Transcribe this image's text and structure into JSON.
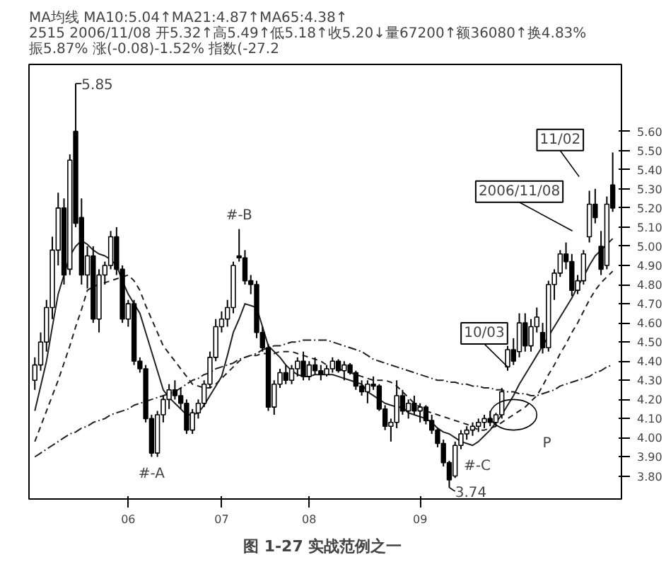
{
  "chart_data": {
    "type": "candlestick",
    "title": "图 1-27  实战范例之一",
    "subtitle": "MA均线 MA10:5.04↑MA21:4.87↑MA65:4.38↑\n2515 2006/11/08 开5.32↑高5.49↑低5.18↑收5.20↓量67200↑额36080↑换4.83% 振5.87% 涨(-0.08)-1.52% 指数(-27.2",
    "categories": [
      null,
      null,
      null,
      null,
      null,
      null,
      null,
      null,
      null,
      null,
      null,
      null,
      null,
      null,
      null,
      null,
      "06",
      null,
      null,
      null,
      null,
      null,
      null,
      null,
      null,
      null,
      null,
      null,
      null,
      null,
      null,
      null,
      "07",
      null,
      null,
      null,
      null,
      null,
      null,
      null,
      null,
      null,
      null,
      null,
      null,
      null,
      null,
      "08",
      null,
      null,
      null,
      null,
      null,
      null,
      null,
      null,
      null,
      null,
      null,
      null,
      null,
      null,
      null,
      null,
      null,
      null,
      "09",
      null,
      null,
      null,
      null,
      null,
      null,
      null,
      null,
      null,
      null,
      null,
      null,
      null,
      null,
      null,
      null,
      null,
      null,
      null,
      null,
      null,
      null,
      null,
      null,
      null,
      null,
      null,
      null,
      null,
      null,
      null,
      null,
      null
    ],
    "ylim": [
      3.68,
      5.95
    ],
    "yticks": [
      {
        "value": 3.8,
        "label": "3.80"
      },
      {
        "value": 3.9,
        "label": "3.90"
      },
      {
        "value": 4.0,
        "label": "4.00"
      },
      {
        "value": 4.1,
        "label": "4.10"
      },
      {
        "value": 4.2,
        "label": "4.20"
      },
      {
        "value": 4.3,
        "label": "4.30"
      },
      {
        "value": 4.4,
        "label": "4.40"
      },
      {
        "value": 4.5,
        "label": "4.50"
      },
      {
        "value": 4.6,
        "label": "4.60"
      },
      {
        "value": 4.7,
        "label": "4.70"
      },
      {
        "value": 4.8,
        "label": "4.80"
      },
      {
        "value": 4.9,
        "label": "4.90"
      },
      {
        "value": 5.0,
        "label": "5.00"
      },
      {
        "value": 5.1,
        "label": "5.10"
      },
      {
        "value": 5.2,
        "label": "5.20"
      },
      {
        "value": 5.3,
        "label": "5.30"
      },
      {
        "value": 5.4,
        "label": "5.40"
      },
      {
        "value": 5.5,
        "label": "5.50"
      },
      {
        "value": 5.6,
        "label": "5.60"
      }
    ],
    "ohlc": [
      [
        4.3,
        4.42,
        4.25,
        4.38
      ],
      [
        4.38,
        4.55,
        4.35,
        4.5
      ],
      [
        4.5,
        4.72,
        4.45,
        4.68
      ],
      [
        4.68,
        5.05,
        4.62,
        4.98
      ],
      [
        4.98,
        5.28,
        4.9,
        5.2
      ],
      [
        5.2,
        5.25,
        4.8,
        4.85
      ],
      [
        4.88,
        5.48,
        4.85,
        5.45
      ],
      [
        5.6,
        5.85,
        5.1,
        5.12
      ],
      [
        5.15,
        5.25,
        4.8,
        4.85
      ],
      [
        4.85,
        5.0,
        4.78,
        4.95
      ],
      [
        4.95,
        5.0,
        4.6,
        4.62
      ],
      [
        4.62,
        4.88,
        4.55,
        4.85
      ],
      [
        4.85,
        4.92,
        4.8,
        4.9
      ],
      [
        4.9,
        5.08,
        4.88,
        5.05
      ],
      [
        5.05,
        5.1,
        4.85,
        4.88
      ],
      [
        4.88,
        4.9,
        4.6,
        4.62
      ],
      [
        4.62,
        4.72,
        4.58,
        4.7
      ],
      [
        4.7,
        4.72,
        4.38,
        4.4
      ],
      [
        4.4,
        4.42,
        4.34,
        4.36
      ],
      [
        4.36,
        4.38,
        4.08,
        4.1
      ],
      [
        4.1,
        4.12,
        3.9,
        3.92
      ],
      [
        3.92,
        4.14,
        3.9,
        4.12
      ],
      [
        4.12,
        4.22,
        4.08,
        4.2
      ],
      [
        4.2,
        4.28,
        4.15,
        4.25
      ],
      [
        4.25,
        4.3,
        4.2,
        4.22
      ],
      [
        4.22,
        4.26,
        4.15,
        4.18
      ],
      [
        4.18,
        4.2,
        4.02,
        4.04
      ],
      [
        4.04,
        4.15,
        4.02,
        4.13
      ],
      [
        4.13,
        4.2,
        4.1,
        4.18
      ],
      [
        4.18,
        4.3,
        4.16,
        4.28
      ],
      [
        4.28,
        4.45,
        4.26,
        4.42
      ],
      [
        4.42,
        4.62,
        4.4,
        4.58
      ],
      [
        4.58,
        4.66,
        4.55,
        4.62
      ],
      [
        4.62,
        4.72,
        4.58,
        4.68
      ],
      [
        4.68,
        4.92,
        4.65,
        4.9
      ],
      [
        4.95,
        5.09,
        4.92,
        4.94
      ],
      [
        4.94,
        4.98,
        4.8,
        4.82
      ],
      [
        4.82,
        4.85,
        4.75,
        4.8
      ],
      [
        4.8,
        4.82,
        4.52,
        4.55
      ],
      [
        4.55,
        4.58,
        4.45,
        4.47
      ],
      [
        4.47,
        4.49,
        4.14,
        4.16
      ],
      [
        4.16,
        4.3,
        4.12,
        4.28
      ],
      [
        4.28,
        4.36,
        4.26,
        4.34
      ],
      [
        4.34,
        4.38,
        4.28,
        4.3
      ],
      [
        4.3,
        4.38,
        4.28,
        4.36
      ],
      [
        4.36,
        4.42,
        4.32,
        4.4
      ],
      [
        4.4,
        4.45,
        4.3,
        4.32
      ],
      [
        4.32,
        4.4,
        4.3,
        4.38
      ],
      [
        4.38,
        4.42,
        4.33,
        4.35
      ],
      [
        4.35,
        4.38,
        4.3,
        4.33
      ],
      [
        4.33,
        4.38,
        4.32,
        4.36
      ],
      [
        4.36,
        4.42,
        4.34,
        4.4
      ],
      [
        4.4,
        4.41,
        4.34,
        4.35
      ],
      [
        4.35,
        4.4,
        4.3,
        4.38
      ],
      [
        4.38,
        4.39,
        4.33,
        4.34
      ],
      [
        4.34,
        4.35,
        4.25,
        4.27
      ],
      [
        4.27,
        4.3,
        4.22,
        4.24
      ],
      [
        4.24,
        4.3,
        4.18,
        4.28
      ],
      [
        4.28,
        4.32,
        4.25,
        4.27
      ],
      [
        4.27,
        4.28,
        4.14,
        4.15
      ],
      [
        4.15,
        4.17,
        4.04,
        4.06
      ],
      [
        4.06,
        4.1,
        3.98,
        4.08
      ],
      [
        4.08,
        4.3,
        4.05,
        4.22
      ],
      [
        4.22,
        4.25,
        4.12,
        4.14
      ],
      [
        4.14,
        4.2,
        4.1,
        4.18
      ],
      [
        4.18,
        4.22,
        4.12,
        4.14
      ],
      [
        4.14,
        4.18,
        4.08,
        4.16
      ],
      [
        4.16,
        4.17,
        4.07,
        4.09
      ],
      [
        4.09,
        4.12,
        4.02,
        4.04
      ],
      [
        4.04,
        4.05,
        3.95,
        3.97
      ],
      [
        3.97,
        3.99,
        3.85,
        3.87
      ],
      [
        3.87,
        3.88,
        3.74,
        3.78
      ],
      [
        3.8,
        3.98,
        3.79,
        3.96
      ],
      [
        3.96,
        4.04,
        3.94,
        4.02
      ],
      [
        4.02,
        4.06,
        3.99,
        4.04
      ],
      [
        4.04,
        4.08,
        4.01,
        4.06
      ],
      [
        4.06,
        4.1,
        4.03,
        4.08
      ],
      [
        4.08,
        4.12,
        4.05,
        4.1
      ],
      [
        4.1,
        4.14,
        4.06,
        4.08
      ],
      [
        4.08,
        4.13,
        4.06,
        4.12
      ],
      [
        4.12,
        4.26,
        4.1,
        4.24
      ],
      [
        4.37,
        4.48,
        4.35,
        4.46
      ],
      [
        4.46,
        4.52,
        4.38,
        4.4
      ],
      [
        4.45,
        4.65,
        4.42,
        4.6
      ],
      [
        4.6,
        4.65,
        4.45,
        4.48
      ],
      [
        4.48,
        4.62,
        4.45,
        4.58
      ],
      [
        4.58,
        4.68,
        4.55,
        4.63
      ],
      [
        4.55,
        4.6,
        4.44,
        4.47
      ],
      [
        4.47,
        4.82,
        4.45,
        4.8
      ],
      [
        4.8,
        4.88,
        4.72,
        4.86
      ],
      [
        4.86,
        4.98,
        4.84,
        4.96
      ],
      [
        4.96,
        5.02,
        4.88,
        4.92
      ],
      [
        4.92,
        4.96,
        4.74,
        4.77
      ],
      [
        4.77,
        4.85,
        4.75,
        4.82
      ],
      [
        4.82,
        4.98,
        4.8,
        4.96
      ],
      [
        5.05,
        5.29,
        5.02,
        5.22
      ],
      [
        5.22,
        5.3,
        5.12,
        5.15
      ],
      [
        5.0,
        5.08,
        4.85,
        4.88
      ],
      [
        4.9,
        5.26,
        4.88,
        5.22
      ],
      [
        5.32,
        5.49,
        5.18,
        5.2
      ]
    ],
    "series": [
      {
        "type": "line",
        "color": "#222222",
        "line_style": "solid",
        "values": [
          4.14,
          4.27,
          4.4,
          4.58,
          4.75,
          4.85,
          4.95,
          5.0,
          5.03,
          5.01,
          4.98,
          4.96,
          4.95,
          4.93,
          4.9,
          4.82,
          4.75,
          4.7,
          4.65,
          4.55,
          4.45,
          4.35,
          4.25,
          4.21,
          4.18,
          4.15,
          4.12,
          4.12,
          4.13,
          4.17,
          4.22,
          4.27,
          4.32,
          4.43,
          4.55,
          4.62,
          4.7,
          4.69,
          4.68,
          4.58,
          4.48,
          4.45,
          4.42,
          4.38,
          4.35,
          4.33,
          4.32,
          4.32,
          4.33,
          4.33,
          4.33,
          4.33,
          4.32,
          4.31,
          4.3,
          4.29,
          4.28,
          4.24,
          4.22,
          4.2,
          4.18,
          4.17,
          4.16,
          4.16,
          4.13,
          4.12,
          4.11,
          4.1,
          4.08,
          4.05,
          4.03,
          4.02,
          4.0,
          3.98,
          3.97,
          3.96,
          3.98,
          4.01,
          4.04,
          4.08,
          4.12,
          4.17,
          4.22,
          4.28,
          4.33,
          4.38,
          4.43,
          4.48,
          4.53,
          4.58,
          4.63,
          4.68,
          4.73,
          4.79,
          4.84,
          4.9,
          4.95,
          4.98,
          5.01,
          5.04
        ]
      },
      {
        "type": "line",
        "color": "#222222",
        "line_style": "dashed",
        "values": [
          3.98,
          4.06,
          4.14,
          4.22,
          4.3,
          4.39,
          4.48,
          4.58,
          4.67,
          4.77,
          4.79,
          4.8,
          4.81,
          4.82,
          4.83,
          4.84,
          4.85,
          4.82,
          4.77,
          4.69,
          4.62,
          4.55,
          4.48,
          4.44,
          4.4,
          4.36,
          4.32,
          4.28,
          4.27,
          4.26,
          4.26,
          4.28,
          4.31,
          4.34,
          4.37,
          4.4,
          4.42,
          4.43,
          4.43,
          4.44,
          4.44,
          4.44,
          4.45,
          4.45,
          4.45,
          4.44,
          4.43,
          4.42,
          4.41,
          4.4,
          4.38,
          4.37,
          4.36,
          4.35,
          4.34,
          4.33,
          4.32,
          4.31,
          4.3,
          4.3,
          4.3,
          4.29,
          4.27,
          4.24,
          4.21,
          4.18,
          4.16,
          4.14,
          4.13,
          4.12,
          4.11,
          4.1,
          4.09,
          4.08,
          4.07,
          4.06,
          4.04,
          4.04,
          4.05,
          4.06,
          4.08,
          4.1,
          4.12,
          4.14,
          4.16,
          4.19,
          4.22,
          4.27,
          4.33,
          4.38,
          4.44,
          4.49,
          4.55,
          4.6,
          4.66,
          4.72,
          4.77,
          4.81,
          4.84,
          4.87
        ]
      },
      {
        "type": "line",
        "color": "#222222",
        "line_style": "dotted",
        "values": [
          3.9,
          3.92,
          3.94,
          3.96,
          3.98,
          4.0,
          4.02,
          4.03,
          4.05,
          4.06,
          4.08,
          4.09,
          4.1,
          4.12,
          4.13,
          4.14,
          4.15,
          4.17,
          4.18,
          4.19,
          4.2,
          4.21,
          4.22,
          4.23,
          4.24,
          4.26,
          4.28,
          4.3,
          4.31,
          4.33,
          4.34,
          4.36,
          4.37,
          4.38,
          4.39,
          4.41,
          4.42,
          4.43,
          4.44,
          4.46,
          4.47,
          4.48,
          4.48,
          4.49,
          4.5,
          4.5,
          4.51,
          4.51,
          4.51,
          4.51,
          4.51,
          4.5,
          4.49,
          4.48,
          4.47,
          4.46,
          4.45,
          4.43,
          4.41,
          4.4,
          4.39,
          4.38,
          4.37,
          4.36,
          4.35,
          4.34,
          4.33,
          4.32,
          4.31,
          4.3,
          4.3,
          4.29,
          4.29,
          4.28,
          4.28,
          4.27,
          4.27,
          4.26,
          4.26,
          4.25,
          4.25,
          4.24,
          4.24,
          4.23,
          4.23,
          4.22,
          4.22,
          4.23,
          4.24,
          4.25,
          4.27,
          4.28,
          4.29,
          4.3,
          4.31,
          4.32,
          4.34,
          4.35,
          4.37,
          4.38
        ]
      }
    ],
    "annotations": [
      "5.85",
      "#-A",
      "#-B",
      "#-C",
      "3.74",
      "10/03",
      "2006/11/08",
      "11/02",
      "P"
    ],
    "grid": false
  }
}
